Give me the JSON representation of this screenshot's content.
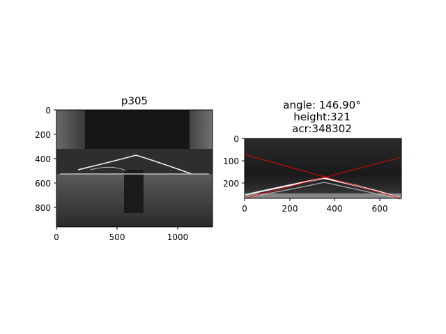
{
  "figure": {
    "background": "#ffffff",
    "panels": [
      {
        "title_lines": [
          "p305"
        ],
        "x_ticks": [
          "0",
          "500",
          "1000"
        ],
        "y_ticks": [
          "0",
          "200",
          "400",
          "600",
          "800"
        ]
      },
      {
        "title_lines": [
          "angle: 146.90°",
          "height:321",
          "acr:348302"
        ],
        "x_ticks": [
          "0",
          "200",
          "400",
          "600"
        ],
        "y_ticks": [
          "0",
          "100",
          "200"
        ],
        "fit_line_color": "#ff0000"
      }
    ]
  }
}
